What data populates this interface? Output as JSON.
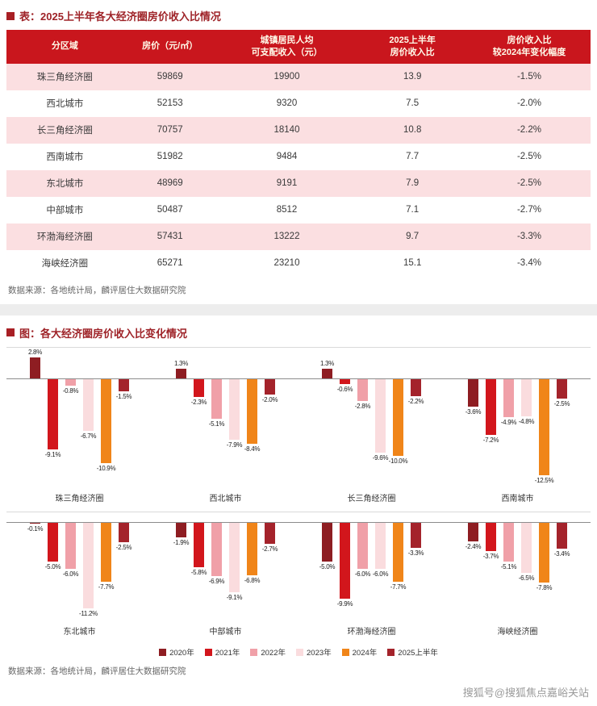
{
  "table_section": {
    "title": "表：2025上半年各大经济圈房价收入比情况",
    "headers": [
      [
        "分区域"
      ],
      [
        "房价（元/㎡）"
      ],
      [
        "城镇居民人均",
        "可支配收入（元）"
      ],
      [
        "2025上半年",
        "房价收入比"
      ],
      [
        "房价收入比",
        "较2024年变化幅度"
      ]
    ],
    "col_widths": [
      "20%",
      "16%",
      "24%",
      "19%",
      "21%"
    ],
    "rows": [
      [
        "珠三角经济圈",
        "59869",
        "19900",
        "13.9",
        "-1.5%"
      ],
      [
        "西北城市",
        "52153",
        "9320",
        "7.5",
        "-2.0%"
      ],
      [
        "长三角经济圈",
        "70757",
        "18140",
        "10.8",
        "-2.2%"
      ],
      [
        "西南城市",
        "51982",
        "9484",
        "7.7",
        "-2.5%"
      ],
      [
        "东北城市",
        "48969",
        "9191",
        "7.9",
        "-2.5%"
      ],
      [
        "中部城市",
        "50487",
        "8512",
        "7.1",
        "-2.7%"
      ],
      [
        "环渤海经济圈",
        "57431",
        "13222",
        "9.7",
        "-3.3%"
      ],
      [
        "海峡经济圈",
        "65271",
        "23210",
        "15.1",
        "-3.4%"
      ]
    ],
    "source": "数据来源：各地统计局，麟评居住大数据研究院"
  },
  "chart_section": {
    "title": "图：各大经济圈房价收入比变化情况",
    "source": "数据来源：各地统计局，麟评居住大数据研究院"
  },
  "chart_data": {
    "type": "bar",
    "title": "各大经济圈房价收入比变化情况",
    "unit": "%",
    "categories": [
      "珠三角经济圈",
      "西北城市",
      "长三角经济圈",
      "西南城市",
      "东北城市",
      "中部城市",
      "环渤海经济圈",
      "海峡经济圈"
    ],
    "series": [
      {
        "name": "2020年",
        "color": "#8E1D22",
        "values": [
          2.8,
          1.3,
          1.3,
          -3.6,
          -0.1,
          -1.9,
          -5.0,
          -2.4
        ]
      },
      {
        "name": "2021年",
        "color": "#D2161C",
        "values": [
          -9.1,
          -2.3,
          -0.6,
          -7.2,
          -5.0,
          -5.8,
          -9.9,
          -3.7
        ]
      },
      {
        "name": "2022年",
        "color": "#F0A0A8",
        "values": [
          -0.8,
          -5.1,
          -2.8,
          -4.9,
          -6.0,
          -6.9,
          -6.0,
          -5.1
        ]
      },
      {
        "name": "2023年",
        "color": "#FADCDE",
        "values": [
          -6.7,
          -7.9,
          -9.6,
          -4.8,
          -11.2,
          -9.1,
          -6.0,
          -6.5
        ]
      },
      {
        "name": "2024年",
        "color": "#F08519",
        "values": [
          -10.9,
          -8.4,
          -10.0,
          -12.5,
          -7.7,
          -6.8,
          -7.7,
          -7.8
        ]
      },
      {
        "name": "2025上半年",
        "color": "#A4232B",
        "values": [
          -1.5,
          -2.0,
          -2.2,
          -2.5,
          -2.5,
          -2.7,
          -3.3,
          -3.4
        ]
      }
    ],
    "rows_layout": [
      4,
      4
    ],
    "legend_position": "bottom",
    "grid": false,
    "ylim": [
      -13,
      3
    ]
  },
  "watermark": "搜狐号@搜狐焦点嘉峪关站",
  "colors": {
    "header_bg": "#C9161D",
    "row_pink": "#FBDFE1",
    "title_red": "#9E2227"
  }
}
